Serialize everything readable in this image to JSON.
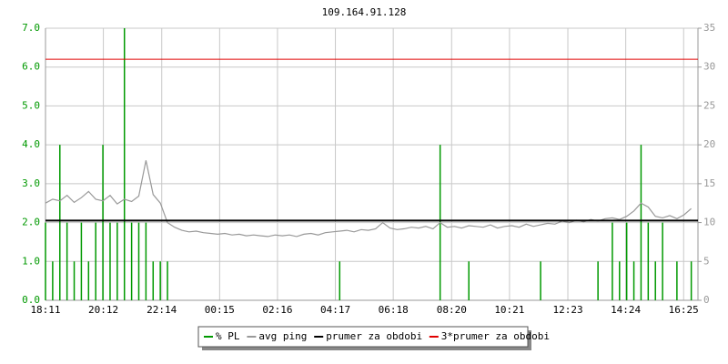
{
  "chart_data": {
    "type": "line",
    "title": "109.164.91.128",
    "x": [
      0,
      15,
      30,
      45,
      60,
      75,
      90,
      105,
      120,
      135,
      150,
      165,
      180,
      195,
      210,
      225,
      240,
      255,
      270,
      285,
      300,
      315,
      330,
      345,
      360,
      375,
      390,
      405,
      420,
      435,
      450,
      465,
      480,
      495,
      510,
      525,
      540,
      555,
      570,
      585,
      600,
      615,
      630,
      645,
      660,
      675,
      690,
      705,
      720,
      735,
      750,
      765,
      780,
      795,
      810,
      825,
      840,
      855,
      870,
      885,
      900,
      915,
      930,
      945,
      960,
      975,
      990,
      1005,
      1020,
      1035,
      1050,
      1065,
      1080,
      1095,
      1110,
      1125,
      1140,
      1155,
      1170,
      1185,
      1200,
      1215,
      1230,
      1245,
      1260,
      1275,
      1290,
      1305,
      1320,
      1335,
      1350
    ],
    "xlim": [
      0,
      1364
    ],
    "xticks": [
      {
        "value": 0,
        "label": "18:11"
      },
      {
        "value": 121,
        "label": "20:12"
      },
      {
        "value": 243,
        "label": "22:14"
      },
      {
        "value": 364,
        "label": "00:15"
      },
      {
        "value": 485,
        "label": "02:16"
      },
      {
        "value": 606,
        "label": "04:17"
      },
      {
        "value": 727,
        "label": "06:18"
      },
      {
        "value": 849,
        "label": "08:20"
      },
      {
        "value": 970,
        "label": "10:21"
      },
      {
        "value": 1092,
        "label": "12:23"
      },
      {
        "value": 1213,
        "label": "14:24"
      },
      {
        "value": 1334,
        "label": "16:25"
      }
    ],
    "ylim": [
      0,
      7
    ],
    "yticks": [
      {
        "value": 0,
        "label": "0.0"
      },
      {
        "value": 1,
        "label": "1.0"
      },
      {
        "value": 2,
        "label": "2.0"
      },
      {
        "value": 3,
        "label": "3.0"
      },
      {
        "value": 4,
        "label": "4.0"
      },
      {
        "value": 5,
        "label": "5.0"
      },
      {
        "value": 6,
        "label": "6.0"
      },
      {
        "value": 7,
        "label": "7.0"
      }
    ],
    "y2lim": [
      0,
      35
    ],
    "y2ticks": [
      0,
      5,
      10,
      15,
      20,
      25,
      30,
      35
    ],
    "grid": true,
    "series": [
      {
        "name": "% PL",
        "color": "#009900",
        "style": "spikes",
        "values": [
          2,
          1,
          4,
          2,
          1,
          2,
          1,
          2,
          4,
          2,
          2,
          7,
          2,
          2,
          2,
          1,
          1,
          1,
          0,
          0,
          0,
          0,
          0,
          0,
          0,
          0,
          0,
          0,
          0,
          0,
          0,
          0,
          0,
          0,
          0,
          0,
          0,
          0,
          0,
          0,
          0,
          1,
          0,
          0,
          0,
          0,
          0,
          0,
          0,
          0,
          0,
          0,
          0,
          0,
          0,
          4,
          0,
          0,
          0,
          1,
          0,
          0,
          0,
          0,
          0,
          0,
          0,
          0,
          0,
          1,
          0,
          0,
          0,
          0,
          0,
          0,
          0,
          1,
          0,
          2,
          1,
          2,
          1,
          4,
          2,
          1,
          2,
          0,
          1,
          0,
          1
        ]
      },
      {
        "name": "avg ping",
        "color": "#999999",
        "style": "line",
        "axis": "y2",
        "values": [
          12.5,
          13,
          12.8,
          13.5,
          12.6,
          13.2,
          14,
          13,
          12.8,
          13.5,
          12.4,
          13,
          12.7,
          13.4,
          18,
          13.6,
          12.5,
          10,
          9.4,
          9,
          8.8,
          8.9,
          8.7,
          8.6,
          8.5,
          8.6,
          8.4,
          8.5,
          8.3,
          8.4,
          8.3,
          8.2,
          8.4,
          8.3,
          8.4,
          8.2,
          8.5,
          8.6,
          8.4,
          8.7,
          8.8,
          8.9,
          9,
          8.8,
          9.1,
          9,
          9.2,
          10,
          9.3,
          9.1,
          9.2,
          9.4,
          9.3,
          9.5,
          9.2,
          10,
          9.4,
          9.5,
          9.3,
          9.6,
          9.5,
          9.4,
          9.7,
          9.3,
          9.5,
          9.6,
          9.4,
          9.8,
          9.5,
          9.7,
          9.9,
          9.8,
          10.2,
          10,
          10.3,
          10.1,
          10.4,
          10.2,
          10.5,
          10.6,
          10.4,
          10.8,
          11.5,
          12.5,
          12,
          10.8,
          10.6,
          10.9,
          10.5,
          11,
          11.8
        ]
      }
    ],
    "reference_lines": [
      {
        "name": "prumer za obdobi",
        "color": "#000000",
        "value": 2.05
      },
      {
        "name": "3*prumer za obdobi",
        "color": "#e00000",
        "value": 6.2
      }
    ]
  }
}
